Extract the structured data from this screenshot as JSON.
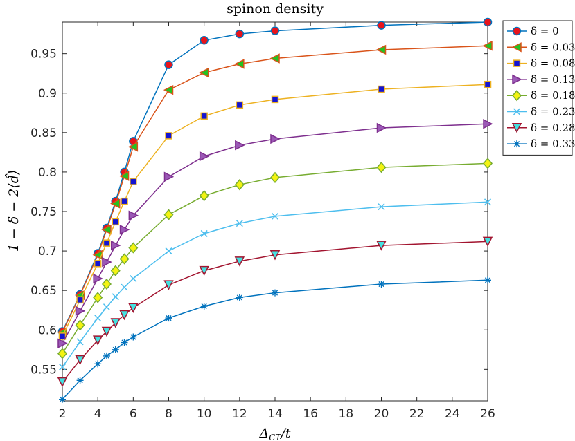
{
  "chart_data": {
    "type": "line",
    "title": "spinon density",
    "xlabel": "Δ_CT/t",
    "ylabel": "1 − δ − 2⟨d̂⟩",
    "xlim": [
      2,
      26
    ],
    "ylim": [
      0.51,
      0.99
    ],
    "xticks": [
      2,
      4,
      6,
      8,
      10,
      12,
      14,
      16,
      18,
      20,
      22,
      24,
      26
    ],
    "yticks": [
      0.55,
      0.6,
      0.65,
      0.7,
      0.75,
      0.8,
      0.85,
      0.9,
      0.95
    ],
    "ytick_labels": [
      "0.55",
      "0.6",
      "0.65",
      "0.7",
      "0.75",
      "0.8",
      "0.85",
      "0.9",
      "0.95"
    ],
    "grid": false,
    "legend_position": "outside-top-right",
    "x": [
      2,
      3,
      4,
      4.5,
      5,
      5.5,
      6,
      8,
      10,
      12,
      14,
      20,
      26
    ],
    "series": [
      {
        "name": "δ = 0",
        "marker": "circle",
        "line_color": "#0072BD",
        "marker_face": "#E8141B",
        "marker_edge": "#0072BD",
        "values": [
          0.598,
          0.645,
          0.697,
          0.729,
          0.763,
          0.8,
          0.839,
          0.936,
          0.967,
          0.975,
          0.979,
          0.986,
          0.99
        ]
      },
      {
        "name": "δ = 0.03",
        "marker": "triangle-left",
        "line_color": "#D95319",
        "marker_face": "#22C322",
        "marker_edge": "#D95319",
        "values": [
          0.597,
          0.644,
          0.695,
          0.727,
          0.76,
          0.795,
          0.832,
          0.904,
          0.926,
          0.937,
          0.944,
          0.955,
          0.96
        ]
      },
      {
        "name": "δ = 0.08",
        "marker": "square",
        "line_color": "#EDB120",
        "marker_face": "#1414D2",
        "marker_edge": "#EDB120",
        "values": [
          0.592,
          0.638,
          0.684,
          0.71,
          0.737,
          0.763,
          0.788,
          0.846,
          0.871,
          0.885,
          0.892,
          0.905,
          0.911
        ]
      },
      {
        "name": "δ = 0.13",
        "marker": "triangle-right",
        "line_color": "#7E2F8E",
        "marker_face": "#9B59B6",
        "marker_edge": "#7E2F8E",
        "values": [
          0.583,
          0.624,
          0.665,
          0.686,
          0.707,
          0.727,
          0.745,
          0.794,
          0.82,
          0.834,
          0.842,
          0.856,
          0.861
        ]
      },
      {
        "name": "δ = 0.18",
        "marker": "diamond",
        "line_color": "#77AC30",
        "marker_face": "#F3F312",
        "marker_edge": "#77AC30",
        "values": [
          0.57,
          0.606,
          0.641,
          0.658,
          0.675,
          0.69,
          0.704,
          0.746,
          0.77,
          0.784,
          0.793,
          0.806,
          0.811
        ]
      },
      {
        "name": "δ = 0.23",
        "marker": "x",
        "line_color": "#4DBEEE",
        "marker_face": "none",
        "marker_edge": "#4DBEEE",
        "values": [
          0.553,
          0.585,
          0.615,
          0.629,
          0.642,
          0.654,
          0.665,
          0.7,
          0.722,
          0.735,
          0.744,
          0.756,
          0.762
        ]
      },
      {
        "name": "δ = 0.28",
        "marker": "triangle-down",
        "line_color": "#A2142F",
        "marker_face": "#44E0E0",
        "marker_edge": "#A2142F",
        "values": [
          0.534,
          0.562,
          0.587,
          0.598,
          0.609,
          0.619,
          0.628,
          0.657,
          0.675,
          0.687,
          0.695,
          0.707,
          0.712
        ]
      },
      {
        "name": "δ = 0.33",
        "marker": "asterisk",
        "line_color": "#0072BD",
        "marker_face": "none",
        "marker_edge": "#0072BD",
        "values": [
          0.512,
          0.536,
          0.557,
          0.567,
          0.575,
          0.584,
          0.591,
          0.615,
          0.63,
          0.641,
          0.647,
          0.658,
          0.663
        ]
      }
    ]
  }
}
